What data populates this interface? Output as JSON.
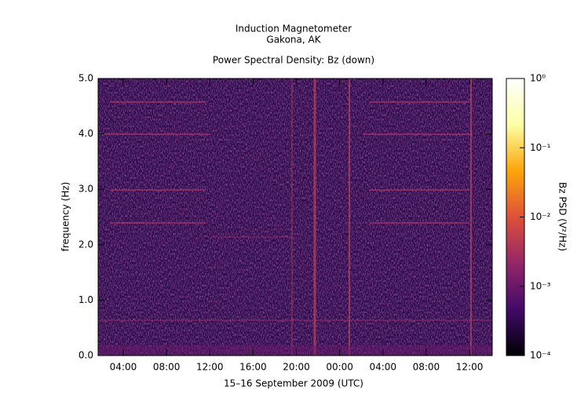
{
  "chart_data": {
    "type": "spectrogram",
    "title": "Induction Magnetometer",
    "subtitle": "Gakona, AK",
    "plot_title": "Power Spectral Density: Bz (down)",
    "x_label": "15–16 September 2009 (UTC)",
    "y_label": "frequency (Hz)",
    "xlim": [
      1.68,
      38.1
    ],
    "xticks": [
      {
        "value": 4,
        "label": "04:00"
      },
      {
        "value": 8,
        "label": "08:00"
      },
      {
        "value": 12,
        "label": "12:00"
      },
      {
        "value": 16,
        "label": "16:00"
      },
      {
        "value": 20,
        "label": "20:00"
      },
      {
        "value": 24,
        "label": "00:00"
      },
      {
        "value": 28,
        "label": "04:00"
      },
      {
        "value": 32,
        "label": "08:00"
      },
      {
        "value": 36,
        "label": "12:00"
      }
    ],
    "ylim": [
      0,
      5
    ],
    "yticks": [
      {
        "value": 0,
        "label": "0.0"
      },
      {
        "value": 1,
        "label": "1.0"
      },
      {
        "value": 2,
        "label": "2.0"
      },
      {
        "value": 3,
        "label": "3.0"
      },
      {
        "value": 4,
        "label": "4.0"
      },
      {
        "value": 5,
        "label": "5.0"
      }
    ],
    "colorbar": {
      "label": "Bz PSD (V²/Hz)",
      "log_scale": true,
      "lim": [
        0.0001,
        1
      ],
      "ticks": [
        {
          "value": 0.0001,
          "label": "10⁻⁴"
        },
        {
          "value": 0.001,
          "label": "10⁻³"
        },
        {
          "value": 0.01,
          "label": "10⁻²"
        },
        {
          "value": 0.1,
          "label": "10⁻¹"
        },
        {
          "value": 1,
          "label": "10⁰"
        }
      ],
      "colormap": [
        "#000004",
        "#420a68",
        "#932667",
        "#dd513a",
        "#fca50a",
        "#fcffa4",
        "#ffffff"
      ]
    }
  }
}
